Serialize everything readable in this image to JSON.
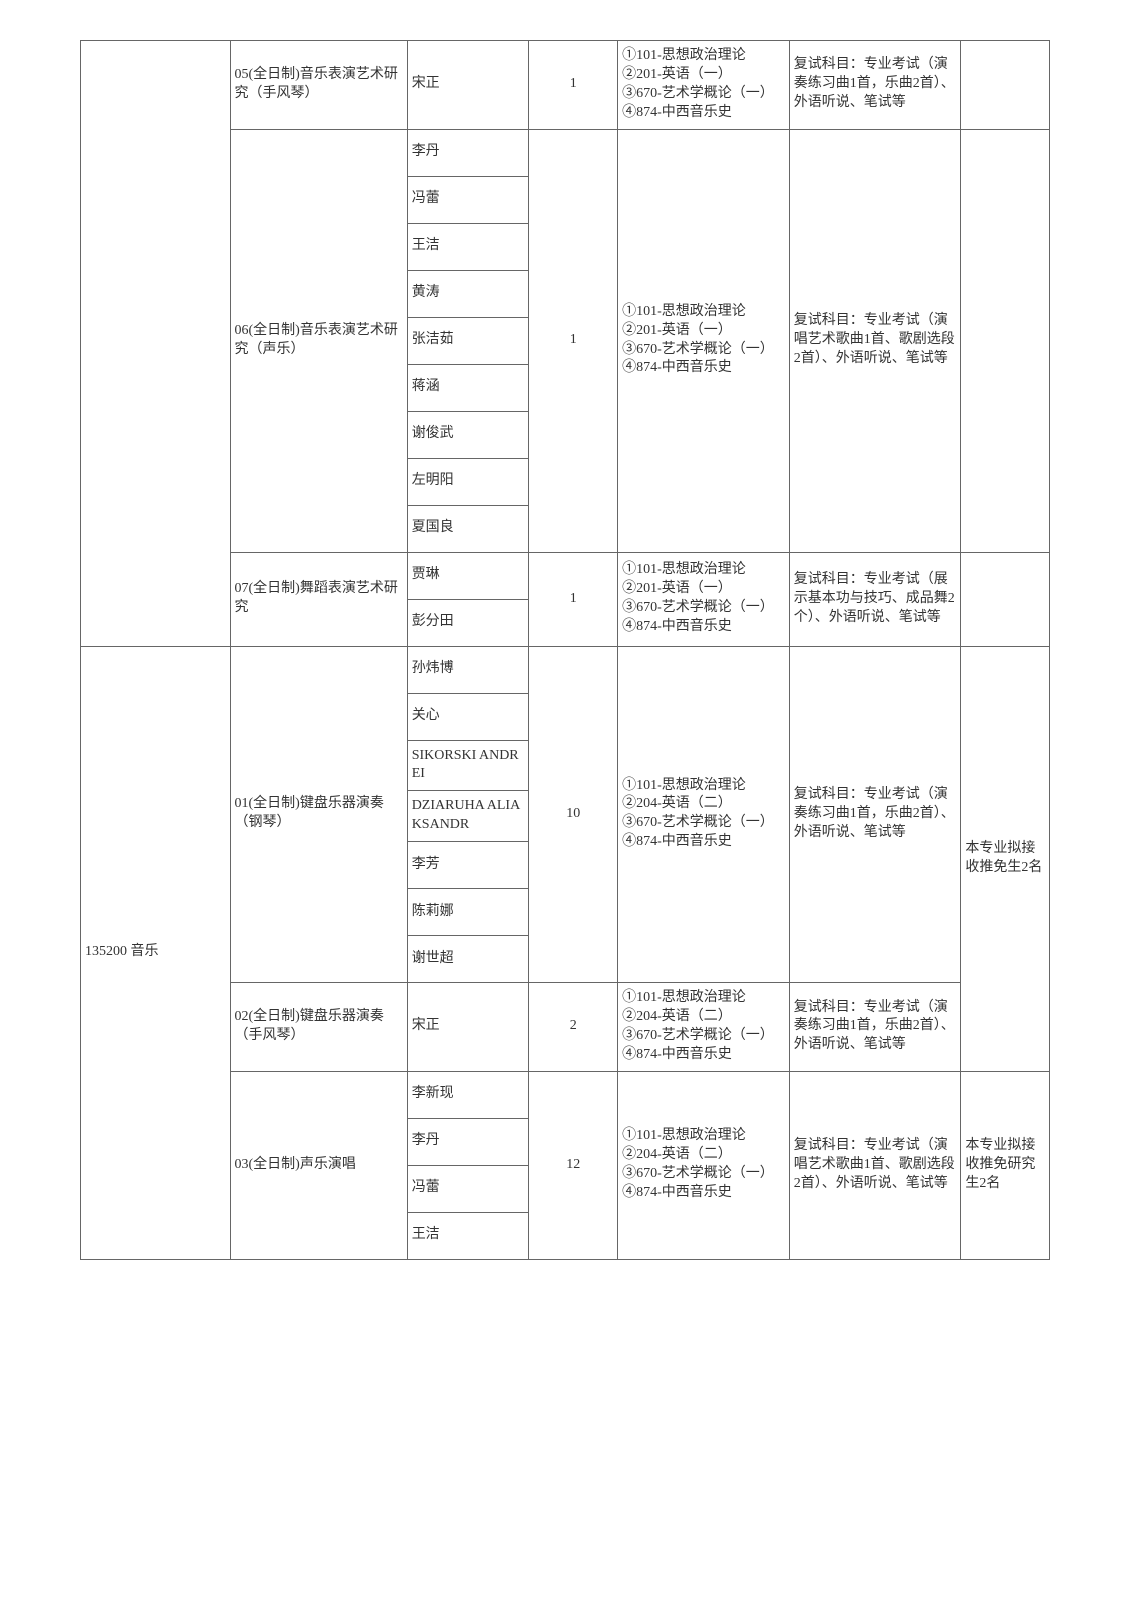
{
  "rows": [
    {
      "code": "",
      "dir": "05(全日制)音乐表演艺术研究（手风琴）",
      "teachers": [
        "宋正"
      ],
      "count": "1",
      "subjects": "①101-思想政治理论\n②201-英语（一）\n③670-艺术学概论（一）\n④874-中西音乐史",
      "retest": "复试科目：专业考试（演奏练习曲1首，乐曲2首）、外语听说、笔试等",
      "notes": ""
    },
    {
      "code": "",
      "dir": "06(全日制)音乐表演艺术研究（声乐）",
      "teachers": [
        "李丹",
        "冯蕾",
        "王洁",
        "黄涛",
        "张洁茹",
        "蒋涵",
        "谢俊武",
        "左明阳",
        "夏国良"
      ],
      "count": "1",
      "subjects": "①101-思想政治理论\n②201-英语（一）\n③670-艺术学概论（一）\n④874-中西音乐史",
      "retest": "复试科目：专业考试（演唱艺术歌曲1首、歌剧选段2首）、外语听说、笔试等",
      "notes": ""
    },
    {
      "code": "",
      "dir": "07(全日制)舞蹈表演艺术研究",
      "teachers": [
        "贾琳",
        "彭分田"
      ],
      "count": "1",
      "subjects": "①101-思想政治理论\n②201-英语（一）\n③670-艺术学概论（一）\n④874-中西音乐史",
      "retest": "复试科目：专业考试（展示基本功与技巧、成品舞2个）、外语听说、笔试等",
      "notes": ""
    },
    {
      "code": "135200 音乐",
      "dir": "01(全日制)键盘乐器演奏（钢琴）",
      "teachers": [
        "孙炜博",
        "关心",
        "SIKORSKI ANDREI",
        "DZIARUHA ALIAKSANDR",
        "李芳",
        "陈莉娜",
        "谢世超"
      ],
      "count": "10",
      "subjects": "①101-思想政治理论\n②204-英语（二）\n③670-艺术学概论（一）\n④874-中西音乐史",
      "retest": "复试科目：专业考试（演奏练习曲1首，乐曲2首）、外语听说、笔试等",
      "notes": "本专业拟接收推免生2名"
    },
    {
      "code": "",
      "dir": "02(全日制)键盘乐器演奏（手风琴）",
      "teachers": [
        "宋正"
      ],
      "count": "2",
      "subjects": "①101-思想政治理论\n②204-英语（二）\n③670-艺术学概论（一）\n④874-中西音乐史",
      "retest": "复试科目：专业考试（演奏练习曲1首，乐曲2首）、外语听说、笔试等",
      "notes": ""
    },
    {
      "code": "",
      "dir": "03(全日制)声乐演唱",
      "teachers": [
        "李新现",
        "李丹",
        "冯蕾",
        "王洁"
      ],
      "count": "12",
      "subjects": "①101-思想政治理论\n②204-英语（二）\n③670-艺术学概论（一）\n④874-中西音乐史",
      "retest": "复试科目：专业考试（演唱艺术歌曲1首、歌剧选段2首）、外语听说、笔试等",
      "notes": "本专业拟接收推免研究生2名"
    }
  ],
  "code_span": {
    "start": 3,
    "span": 3
  },
  "style": {
    "border_color": "#666666",
    "font_family": "SimSun",
    "font_size": 14,
    "background": "#ffffff"
  }
}
